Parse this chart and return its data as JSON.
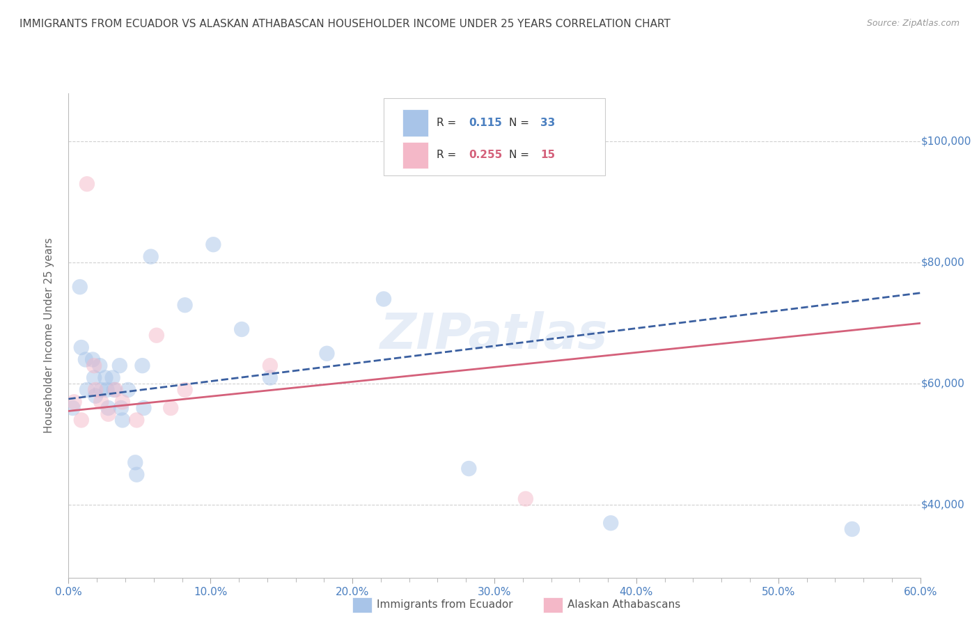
{
  "title": "IMMIGRANTS FROM ECUADOR VS ALASKAN ATHABASCAN HOUSEHOLDER INCOME UNDER 25 YEARS CORRELATION CHART",
  "source": "Source: ZipAtlas.com",
  "ylabel": "Householder Income Under 25 years",
  "xlim": [
    0.0,
    0.6
  ],
  "ylim": [
    28000,
    108000
  ],
  "xtick_labels": [
    "0.0%",
    "",
    "",
    "",
    "",
    "10.0%",
    "",
    "",
    "",
    "",
    "20.0%",
    "",
    "",
    "",
    "",
    "30.0%",
    "",
    "",
    "",
    "",
    "40.0%",
    "",
    "",
    "",
    "",
    "50.0%",
    "",
    "",
    "",
    "",
    "60.0%"
  ],
  "xtick_vals": [
    0.0,
    0.02,
    0.04,
    0.06,
    0.08,
    0.1,
    0.12,
    0.14,
    0.16,
    0.18,
    0.2,
    0.22,
    0.24,
    0.26,
    0.28,
    0.3,
    0.32,
    0.34,
    0.36,
    0.38,
    0.4,
    0.42,
    0.44,
    0.46,
    0.48,
    0.5,
    0.52,
    0.54,
    0.56,
    0.58,
    0.6
  ],
  "ytick_labels": [
    "$40,000",
    "$60,000",
    "$80,000",
    "$100,000"
  ],
  "ytick_vals": [
    40000,
    60000,
    80000,
    100000
  ],
  "watermark": "ZIPatlas",
  "legend_v1": "0.115",
  "legend_nv1": "33",
  "legend_v2": "0.255",
  "legend_nv2": "15",
  "blue_color": "#a8c4e8",
  "blue_line_color": "#3a5fa0",
  "pink_color": "#f4b8c8",
  "pink_line_color": "#d4607a",
  "axis_color": "#4a7fc0",
  "blue_scatter_x": [
    0.003,
    0.008,
    0.009,
    0.012,
    0.013,
    0.017,
    0.018,
    0.019,
    0.022,
    0.023,
    0.026,
    0.027,
    0.028,
    0.031,
    0.032,
    0.036,
    0.037,
    0.038,
    0.042,
    0.047,
    0.048,
    0.052,
    0.053,
    0.058,
    0.082,
    0.102,
    0.122,
    0.142,
    0.182,
    0.222,
    0.282,
    0.382,
    0.552
  ],
  "blue_scatter_y": [
    56000,
    76000,
    66000,
    64000,
    59000,
    64000,
    61000,
    58000,
    63000,
    59000,
    61000,
    59000,
    56000,
    61000,
    59000,
    63000,
    56000,
    54000,
    59000,
    47000,
    45000,
    63000,
    56000,
    81000,
    73000,
    83000,
    69000,
    61000,
    65000,
    74000,
    46000,
    37000,
    36000
  ],
  "pink_scatter_x": [
    0.004,
    0.009,
    0.013,
    0.018,
    0.019,
    0.023,
    0.028,
    0.033,
    0.038,
    0.048,
    0.062,
    0.072,
    0.082,
    0.142,
    0.322
  ],
  "pink_scatter_y": [
    57000,
    54000,
    93000,
    63000,
    59000,
    57000,
    55000,
    59000,
    57000,
    54000,
    68000,
    56000,
    59000,
    63000,
    41000
  ],
  "blue_line_x": [
    0.0,
    0.6
  ],
  "blue_line_y": [
    57500,
    75000
  ],
  "pink_line_x": [
    0.0,
    0.6
  ],
  "pink_line_y": [
    55500,
    70000
  ],
  "grid_color": "#d0d0d0",
  "background_color": "#ffffff",
  "marker_size": 260,
  "marker_alpha": 0.5,
  "figsize": [
    14.06,
    8.92
  ],
  "dpi": 100
}
